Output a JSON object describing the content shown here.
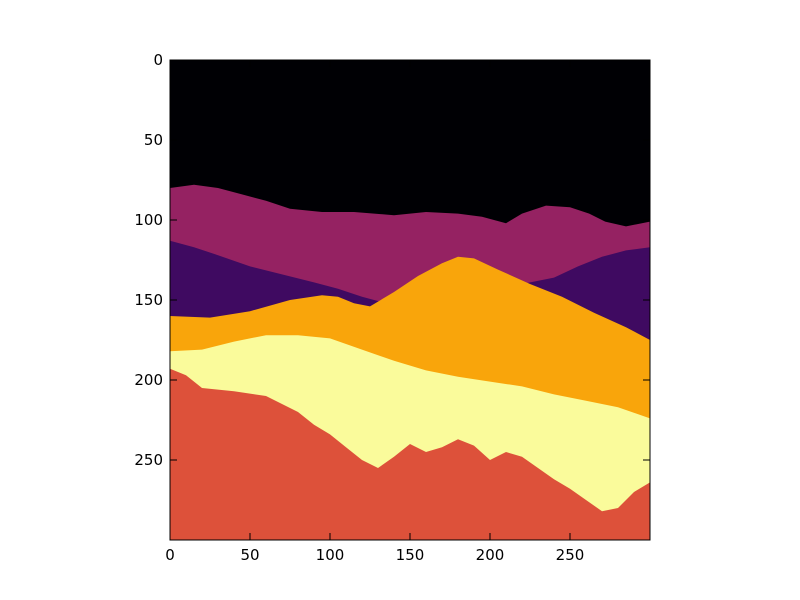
{
  "chart_data": {
    "type": "heatmap",
    "title": "",
    "xlabel": "",
    "ylabel": "",
    "colormap": "inferno",
    "image_shape": [
      300,
      300
    ],
    "xlim": [
      0,
      300
    ],
    "ylim": [
      300,
      0
    ],
    "x_ticks": [
      0,
      50,
      100,
      150,
      200,
      250
    ],
    "y_ticks": [
      0,
      50,
      100,
      150,
      200,
      250
    ],
    "x_tick_labels": [
      "0",
      "50",
      "100",
      "150",
      "200",
      "250"
    ],
    "y_tick_labels": [
      "0",
      "50",
      "100",
      "150",
      "200",
      "250"
    ],
    "regions": [
      {
        "name": "sky",
        "level": 0,
        "color": "#000004",
        "polygon": [
          [
            0,
            0
          ],
          [
            300,
            0
          ],
          [
            300,
            300
          ],
          [
            0,
            300
          ]
        ]
      },
      {
        "name": "far-ridge",
        "level": 1,
        "color": "#952262",
        "polygon": [
          [
            0,
            80
          ],
          [
            15,
            78
          ],
          [
            30,
            80
          ],
          [
            45,
            84
          ],
          [
            60,
            88
          ],
          [
            75,
            93
          ],
          [
            95,
            95
          ],
          [
            115,
            95
          ],
          [
            140,
            97
          ],
          [
            160,
            95
          ],
          [
            180,
            96
          ],
          [
            195,
            98
          ],
          [
            210,
            102
          ],
          [
            220,
            96
          ],
          [
            235,
            91
          ],
          [
            250,
            92
          ],
          [
            262,
            96
          ],
          [
            272,
            101
          ],
          [
            285,
            104
          ],
          [
            300,
            101
          ],
          [
            300,
            300
          ],
          [
            0,
            300
          ]
        ]
      },
      {
        "name": "mid-ridge",
        "level": 2,
        "color": "#3f0a61",
        "polygon": [
          [
            0,
            113
          ],
          [
            15,
            117
          ],
          [
            30,
            122
          ],
          [
            50,
            129
          ],
          [
            70,
            134
          ],
          [
            90,
            139
          ],
          [
            105,
            143
          ],
          [
            120,
            148
          ],
          [
            135,
            152
          ],
          [
            150,
            146
          ],
          [
            170,
            141
          ],
          [
            195,
            139
          ],
          [
            220,
            140
          ],
          [
            240,
            136
          ],
          [
            255,
            129
          ],
          [
            270,
            123
          ],
          [
            285,
            119
          ],
          [
            300,
            117
          ],
          [
            300,
            300
          ],
          [
            0,
            300
          ]
        ]
      },
      {
        "name": "center-hill",
        "level": 3,
        "color": "#f9a50b",
        "polygon": [
          [
            0,
            160
          ],
          [
            25,
            161
          ],
          [
            50,
            157
          ],
          [
            75,
            150
          ],
          [
            95,
            147
          ],
          [
            105,
            148
          ],
          [
            115,
            152
          ],
          [
            125,
            154
          ],
          [
            140,
            145
          ],
          [
            155,
            135
          ],
          [
            170,
            127
          ],
          [
            180,
            123
          ],
          [
            190,
            124
          ],
          [
            205,
            131
          ],
          [
            225,
            140
          ],
          [
            245,
            148
          ],
          [
            265,
            158
          ],
          [
            285,
            167
          ],
          [
            300,
            175
          ],
          [
            300,
            300
          ],
          [
            0,
            300
          ]
        ]
      },
      {
        "name": "near-slope",
        "level": 4,
        "color": "#fafb9b",
        "polygon": [
          [
            0,
            182
          ],
          [
            20,
            181
          ],
          [
            40,
            176
          ],
          [
            60,
            172
          ],
          [
            80,
            172
          ],
          [
            100,
            174
          ],
          [
            120,
            181
          ],
          [
            140,
            188
          ],
          [
            160,
            194
          ],
          [
            180,
            198
          ],
          [
            200,
            201
          ],
          [
            220,
            204
          ],
          [
            240,
            209
          ],
          [
            260,
            213
          ],
          [
            280,
            217
          ],
          [
            300,
            224
          ],
          [
            300,
            300
          ],
          [
            0,
            300
          ]
        ]
      },
      {
        "name": "foreground",
        "level": 5,
        "color": "#dd513a",
        "polygon": [
          [
            0,
            193
          ],
          [
            10,
            197
          ],
          [
            20,
            205
          ],
          [
            40,
            207
          ],
          [
            60,
            210
          ],
          [
            70,
            215
          ],
          [
            80,
            220
          ],
          [
            90,
            228
          ],
          [
            100,
            234
          ],
          [
            110,
            242
          ],
          [
            120,
            250
          ],
          [
            130,
            255
          ],
          [
            140,
            248
          ],
          [
            150,
            240
          ],
          [
            160,
            245
          ],
          [
            170,
            242
          ],
          [
            180,
            237
          ],
          [
            190,
            241
          ],
          [
            200,
            250
          ],
          [
            210,
            245
          ],
          [
            220,
            248
          ],
          [
            230,
            255
          ],
          [
            240,
            262
          ],
          [
            250,
            268
          ],
          [
            260,
            275
          ],
          [
            270,
            282
          ],
          [
            280,
            280
          ],
          [
            290,
            270
          ],
          [
            300,
            264
          ],
          [
            300,
            300
          ],
          [
            0,
            300
          ]
        ]
      }
    ]
  }
}
